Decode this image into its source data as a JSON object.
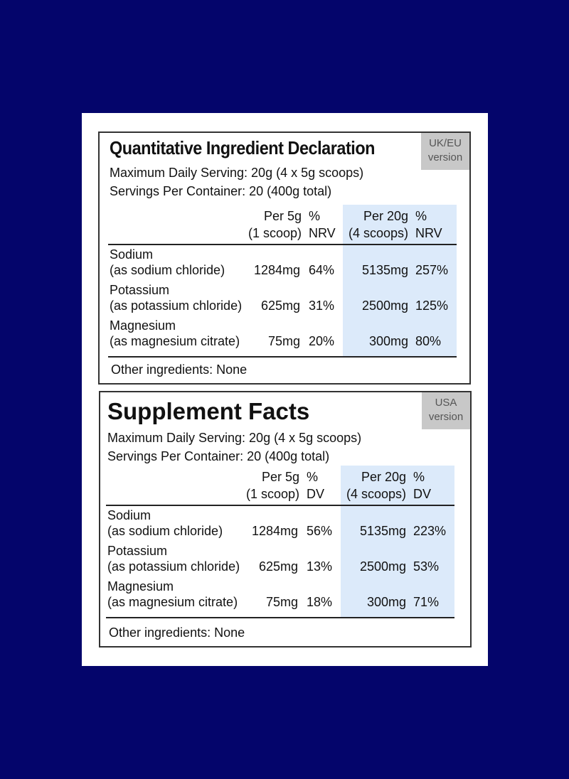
{
  "uk": {
    "title": "Quantitative Ingredient Declaration",
    "badge_line1": "UK/EU",
    "badge_line2": "version",
    "serving": "Maximum Daily Serving: 20g (4 x 5g scoops)",
    "servings_per_container": "Servings Per Container: 20 (400g total)",
    "headers": {
      "per5_line1": "Per 5g",
      "per5_line2": "(1 scoop)",
      "pct1_line1": "%",
      "pct1_line2": "NRV",
      "per20_line1": "Per 20g",
      "per20_line2": "(4 scoops)",
      "pct2_line1": "%",
      "pct2_line2": "NRV"
    },
    "rows": [
      {
        "name": "Sodium",
        "source": "(as sodium chloride)",
        "q1": "1284mg",
        "p1": "64%",
        "q2": "5135mg",
        "p2": "257%"
      },
      {
        "name": "Potassium",
        "source": "(as potassium chloride)",
        "q1": "625mg",
        "p1": "31%",
        "q2": "2500mg",
        "p2": "125%"
      },
      {
        "name": "Magnesium",
        "source": "(as magnesium citrate)",
        "q1": "75mg",
        "p1": "20%",
        "q2": "300mg",
        "p2": "80%"
      }
    ],
    "other": "Other ingredients: None"
  },
  "us": {
    "title": "Supplement Facts",
    "badge_line1": "USA",
    "badge_line2": "version",
    "serving": "Maximum Daily Serving: 20g (4 x 5g scoops)",
    "servings_per_container": "Servings Per Container: 20 (400g total)",
    "headers": {
      "per5_line1": "Per 5g",
      "per5_line2": "(1 scoop)",
      "pct1_line1": "%",
      "pct1_line2": "DV",
      "per20_line1": "Per 20g",
      "per20_line2": "(4 scoops)",
      "pct2_line1": "%",
      "pct2_line2": "DV"
    },
    "rows": [
      {
        "name": "Sodium",
        "source": "(as sodium chloride)",
        "q1": "1284mg",
        "p1": "56%",
        "q2": "5135mg",
        "p2": "223%"
      },
      {
        "name": "Potassium",
        "source": "(as potassium chloride)",
        "q1": "625mg",
        "p1": "13%",
        "q2": "2500mg",
        "p2": "53%"
      },
      {
        "name": "Magnesium",
        "source": "(as magnesium citrate)",
        "q1": "75mg",
        "p1": "18%",
        "q2": "300mg",
        "p2": "71%"
      }
    ],
    "other": "Other ingredients: None"
  }
}
